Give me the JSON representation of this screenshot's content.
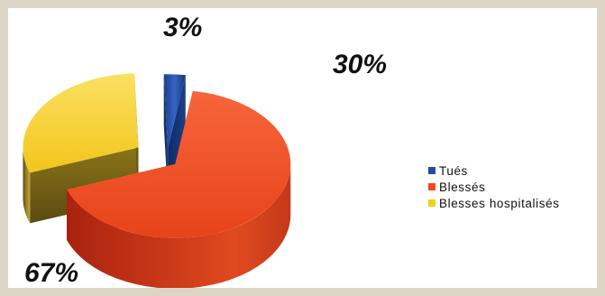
{
  "chart_data": {
    "type": "pie",
    "title": "",
    "slices": [
      {
        "name": "Tués",
        "value": 3,
        "label": "3%",
        "color": "#1f4da6"
      },
      {
        "name": "Blessés",
        "value": 67,
        "label": "67%",
        "color": "#ef4a1c"
      },
      {
        "name": "Blesses hospitalisés",
        "value": 30,
        "label": "30%",
        "color": "#f5cf1f"
      }
    ],
    "legend_position": "right",
    "style": "3d-exploded"
  }
}
